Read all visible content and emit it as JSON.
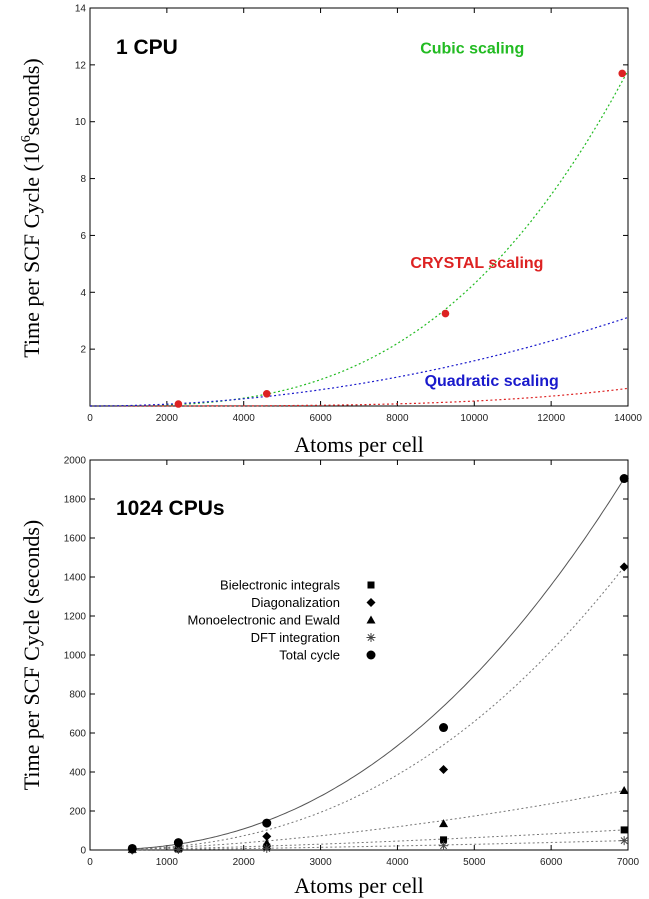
{
  "chart_data": [
    {
      "type": "line",
      "title": "1 CPU",
      "xlabel": "Atoms per cell",
      "ylabel_main": "Time per SCF Cycle (10",
      "ylabel_sup": "6",
      "ylabel_tail": "seconds)",
      "xlim": [
        0,
        14000
      ],
      "ylim": [
        0,
        14
      ],
      "x_ticks": [
        0,
        2000,
        4000,
        6000,
        8000,
        10000,
        12000,
        14000
      ],
      "y_ticks": [
        2,
        4,
        6,
        8,
        10,
        12,
        14
      ],
      "grid": false,
      "series": [
        {
          "name": "Cubic scaling",
          "color": "#22bb22",
          "style": "dotted-curve",
          "model": "cubic",
          "coef": 4.3e-12
        },
        {
          "name": "CRYSTAL scaling",
          "color": "#dd2222",
          "style": "dotted-curve",
          "model": "power",
          "coef": 1.45e-16,
          "exponent": 3.77
        },
        {
          "name": "Quadratic scaling",
          "color": "#1a1acc",
          "style": "dotted-curve",
          "model": "quadratic",
          "coef": 1.59e-08
        }
      ],
      "points": {
        "name": "CRYSTAL scaling",
        "color": "#dd2222",
        "x": [
          2300,
          4600,
          9250,
          13850
        ],
        "y": [
          0.07,
          0.43,
          3.25,
          11.7
        ]
      },
      "annotations": [
        {
          "text": "Cubic scaling",
          "color": "#22bb22",
          "x": 11300,
          "y": 12.4
        },
        {
          "text": "CRYSTAL scaling",
          "color": "#dd2222",
          "x": 11800,
          "y": 4.85
        },
        {
          "text": "Quadratic scaling",
          "color": "#1a1acc",
          "x": 12200,
          "y": 0.7
        }
      ]
    },
    {
      "type": "scatter",
      "title": "1024 CPUs",
      "xlabel": "Atoms per cell",
      "ylabel": "Time per SCF Cycle (seconds)",
      "xlim": [
        0,
        7000
      ],
      "ylim": [
        0,
        2000
      ],
      "x_ticks": [
        0,
        1000,
        2000,
        3000,
        4000,
        5000,
        6000,
        7000
      ],
      "y_ticks": [
        0,
        200,
        400,
        600,
        800,
        1000,
        1200,
        1400,
        1600,
        1800,
        2000
      ],
      "grid": false,
      "legend_position": "center-left",
      "x": [
        550,
        1150,
        2300,
        4600,
        6950
      ],
      "series": [
        {
          "name": "Bielectronic integrals",
          "marker": "square",
          "values": [
            2,
            5,
            15,
            52,
            103
          ],
          "fit": "dotted",
          "fit_exponent": 1.47
        },
        {
          "name": "Diagonalization",
          "marker": "diamond",
          "values": [
            0.3,
            5,
            70,
            413,
            1452
          ],
          "fit": "dotted",
          "fit_exponent": 2.4
        },
        {
          "name": "Monoelectronic and Ewald",
          "marker": "triangle",
          "values": [
            3,
            10,
            35,
            135,
            305
          ],
          "fit": "dotted",
          "fit_exponent": 1.7
        },
        {
          "name": "DFT integration",
          "marker": "asterisk",
          "values": [
            1,
            3,
            8,
            22,
            48
          ],
          "fit": "dotted",
          "fit_exponent": 1.5
        },
        {
          "name": "Total cycle",
          "marker": "circle",
          "values": [
            8,
            38,
            138,
            628,
            1905
          ],
          "fit": "solid",
          "fit_exponent": 2.3
        }
      ]
    }
  ]
}
